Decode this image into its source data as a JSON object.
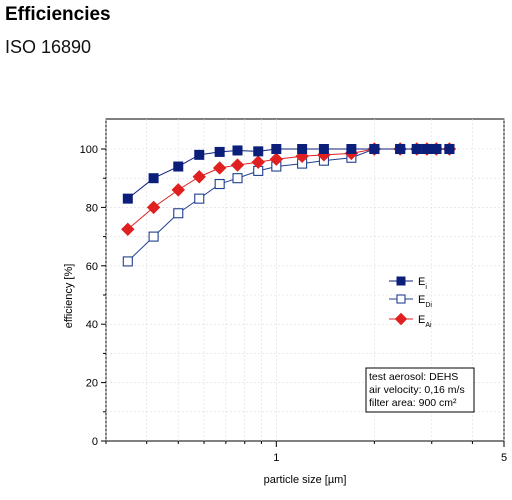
{
  "page": {
    "heading": "Efficiencies",
    "subheading": "ISO 16890"
  },
  "chart_data": {
    "type": "line",
    "xlabel": "particle size [µm]",
    "ylabel": "efficiency [%]",
    "xscale": "log",
    "xlim": [
      0.3,
      5
    ],
    "ylim": [
      0,
      105
    ],
    "xticks": [
      1,
      5
    ],
    "yticks": [
      0,
      20,
      40,
      60,
      80,
      100
    ],
    "grid": true,
    "legend_placement": "right-middle",
    "series": [
      {
        "name_base": "E",
        "name_sub": "i",
        "color": "#0b1f7a",
        "marker": "square-filled",
        "x": [
          0.35,
          0.42,
          0.5,
          0.58,
          0.67,
          0.76,
          0.88,
          1.0,
          1.2,
          1.4,
          1.7,
          2.0,
          2.4,
          2.7,
          2.9,
          3.1,
          3.4
        ],
        "values": [
          83,
          90,
          94,
          98,
          99,
          99.5,
          99.2,
          100,
          100,
          100,
          100,
          100,
          100,
          100,
          100,
          100,
          100
        ]
      },
      {
        "name_base": "E",
        "name_sub": "Di",
        "color": "#1f3f8f",
        "marker": "square-open",
        "x": [
          0.35,
          0.42,
          0.5,
          0.58,
          0.67,
          0.76,
          0.88,
          1.0,
          1.2,
          1.4,
          1.7,
          2.0,
          2.4,
          2.7,
          2.9,
          3.1,
          3.4
        ],
        "values": [
          61.5,
          70,
          78,
          83,
          88,
          90,
          92.5,
          94,
          95,
          96,
          97,
          100,
          100,
          100,
          100,
          100,
          100
        ]
      },
      {
        "name_base": "E",
        "name_sub": "Ai",
        "color": "#e02020",
        "marker": "diamond-filled",
        "x": [
          0.35,
          0.42,
          0.5,
          0.58,
          0.67,
          0.76,
          0.88,
          1.0,
          1.2,
          1.4,
          1.7,
          2.0,
          2.4,
          2.7,
          2.9,
          3.1,
          3.4
        ],
        "values": [
          72.5,
          80,
          86,
          90.5,
          93.5,
          94.5,
          95.5,
          96.5,
          97.5,
          98,
          98.5,
          100,
          100,
          100,
          100,
          100,
          100
        ]
      }
    ],
    "annotation": [
      "test aerosol: DEHS",
      "air velocity: 0,16 m/s",
      "filter area: 900 cm²"
    ]
  }
}
